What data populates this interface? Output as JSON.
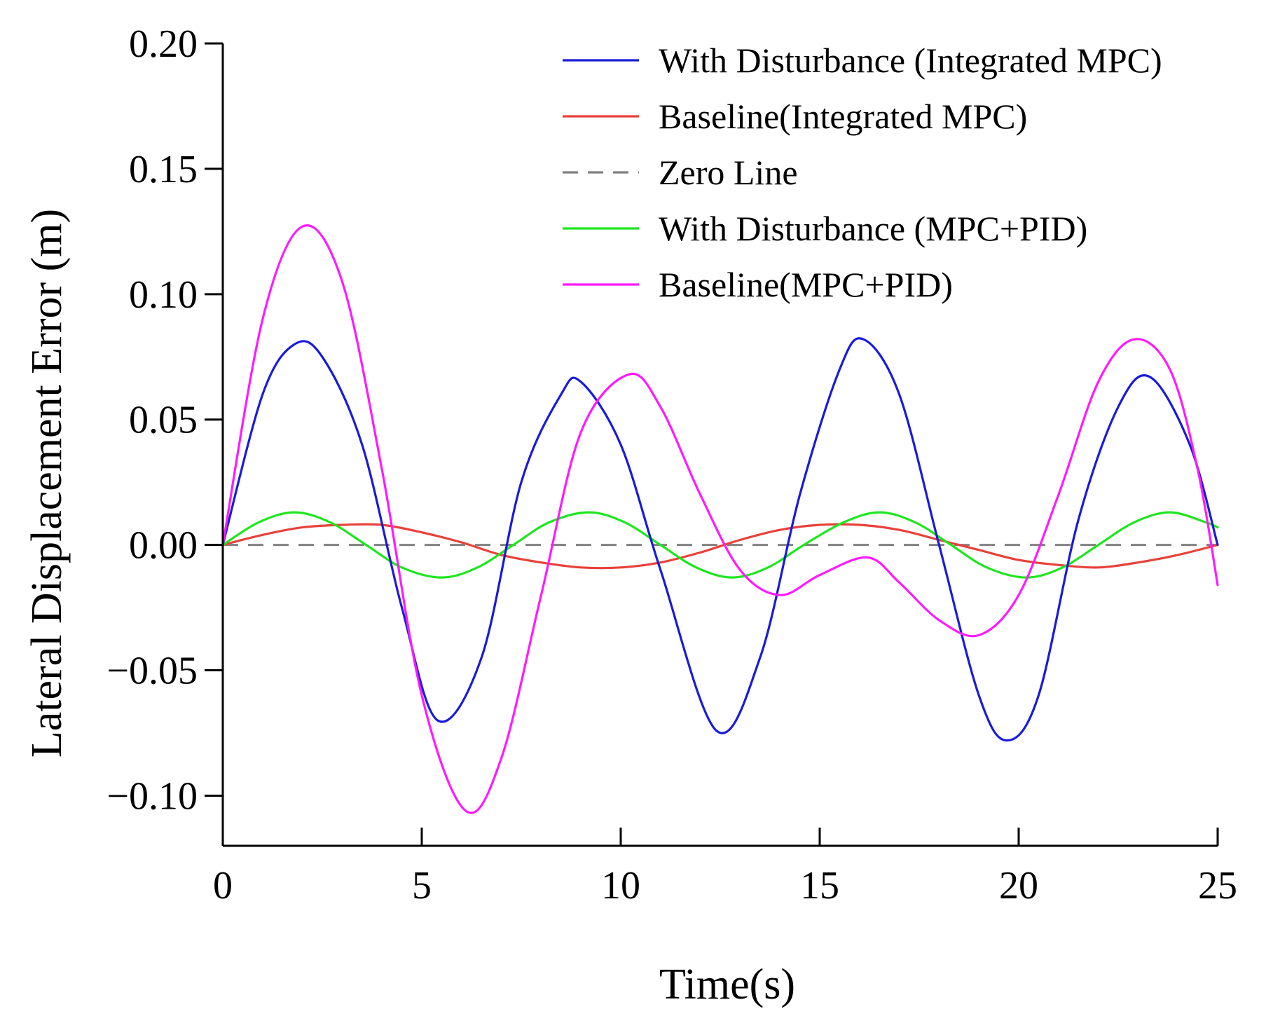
{
  "chart_data": {
    "type": "line",
    "title": "",
    "xlabel": "Time(s)",
    "ylabel": "Lateral Displacement Error (m)",
    "xlim": [
      0,
      25
    ],
    "ylim": [
      -0.12,
      0.2
    ],
    "xticks": [
      0,
      5,
      10,
      15,
      20,
      25
    ],
    "xtick_labels": [
      "0",
      "5",
      "10",
      "15",
      "20",
      "25"
    ],
    "yticks": [
      0.2,
      0.15,
      0.1,
      0.05,
      0.0,
      -0.05,
      -0.1
    ],
    "ytick_labels": [
      "0.20",
      "0.15",
      "0.10",
      "0.05",
      "0.00",
      "−0.05",
      "−0.10"
    ],
    "grid": false,
    "legend_position": "top-right",
    "series": [
      {
        "name": "With Disturbance (Integrated MPC)",
        "color": "#1a1adb",
        "dash": "solid",
        "x": [
          0,
          1,
          1.8,
          2.5,
          3.5,
          4.5,
          5.4,
          6.5,
          7.5,
          8.5,
          9.0,
          10.0,
          11.0,
          12.4,
          13.5,
          14.5,
          15.5,
          16.1,
          17.0,
          18.0,
          19.0,
          19.7,
          20.5,
          21.5,
          22.5,
          23.3,
          24.3,
          25.0
        ],
        "y": [
          0.0,
          0.06,
          0.08,
          0.075,
          0.04,
          -0.025,
          -0.07,
          -0.045,
          0.025,
          0.06,
          0.065,
          0.04,
          -0.01,
          -0.074,
          -0.045,
          0.02,
          0.07,
          0.082,
          0.06,
          0.0,
          -0.06,
          -0.078,
          -0.06,
          0.01,
          0.055,
          0.067,
          0.04,
          0.0
        ]
      },
      {
        "name": "Baseline(Integrated MPC)",
        "color": "#e8413a",
        "dash": "solid",
        "x": [
          0,
          1,
          2,
          3,
          4,
          5,
          6,
          7,
          8,
          9,
          10,
          11,
          12,
          13,
          14,
          15,
          16,
          17,
          18,
          19,
          20,
          21,
          22,
          23,
          24,
          25
        ],
        "y": [
          0.0,
          0.004,
          0.007,
          0.008,
          0.008,
          0.005,
          0.001,
          -0.004,
          -0.007,
          -0.009,
          -0.009,
          -0.007,
          -0.003,
          0.002,
          0.006,
          0.008,
          0.008,
          0.006,
          0.002,
          -0.002,
          -0.006,
          -0.008,
          -0.009,
          -0.007,
          -0.004,
          0.0
        ]
      },
      {
        "name": "Zero Line",
        "color": "#808080",
        "dash": "dashed",
        "x": [
          0,
          25
        ],
        "y": [
          0.0,
          0.0
        ]
      },
      {
        "name": "With Disturbance (MPC+PID)",
        "color": "#1ee61e",
        "dash": "solid",
        "x": [
          0,
          0.9,
          1.8,
          2.7,
          3.6,
          4.5,
          5.5,
          6.4,
          7.3,
          8.2,
          9.2,
          10.1,
          11.0,
          11.9,
          12.8,
          13.7,
          14.6,
          15.6,
          16.5,
          17.4,
          18.3,
          19.2,
          20.2,
          21.1,
          22.0,
          22.9,
          23.8,
          24.7,
          25.0
        ],
        "y": [
          0.0,
          0.009,
          0.013,
          0.009,
          0.0,
          -0.009,
          -0.013,
          -0.009,
          0.0,
          0.009,
          0.013,
          0.009,
          0.0,
          -0.009,
          -0.013,
          -0.009,
          0.0,
          0.009,
          0.013,
          0.009,
          0.0,
          -0.009,
          -0.013,
          -0.009,
          0.0,
          0.009,
          0.013,
          0.009,
          0.007
        ]
      },
      {
        "name": "Baseline(MPC+PID)",
        "color": "#ff1aff",
        "dash": "solid",
        "x": [
          0,
          1,
          2.0,
          3.0,
          4.0,
          5.0,
          6.1,
          7.0,
          8.0,
          9.0,
          10.2,
          11.0,
          12.0,
          13.0,
          14.0,
          15.0,
          16.2,
          17.0,
          18.0,
          19.0,
          20.0,
          21.0,
          22.0,
          22.9,
          23.8,
          24.5,
          25.0
        ],
        "y": [
          0.0,
          0.09,
          0.127,
          0.105,
          0.03,
          -0.06,
          -0.106,
          -0.085,
          -0.02,
          0.045,
          0.068,
          0.055,
          0.02,
          -0.01,
          -0.02,
          -0.012,
          -0.005,
          -0.015,
          -0.03,
          -0.036,
          -0.02,
          0.02,
          0.065,
          0.082,
          0.07,
          0.03,
          -0.016
        ]
      }
    ]
  }
}
